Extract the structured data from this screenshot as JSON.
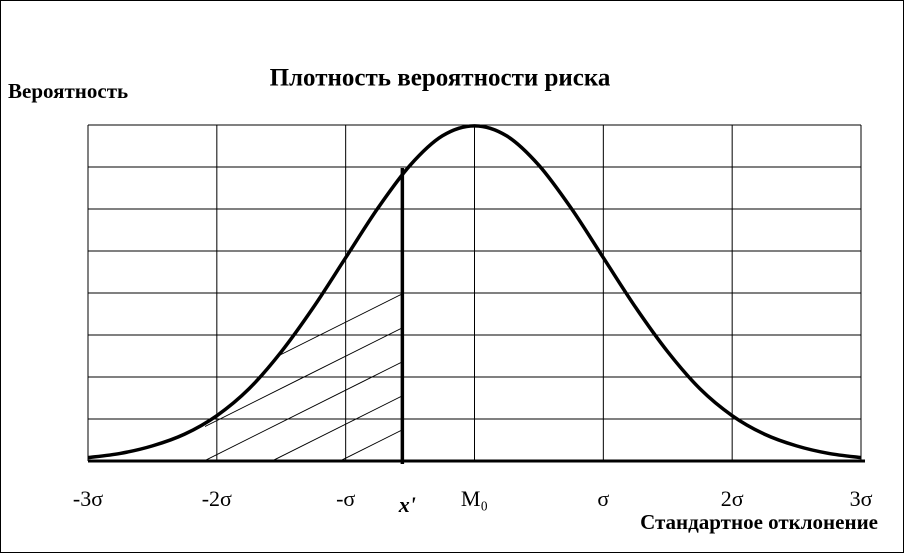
{
  "chart_data": {
    "type": "line",
    "title": "Плотность вероятности риска",
    "y_label": "Вероятность",
    "x_label": "Стандартное отклонение",
    "x": [
      -3,
      -2.75,
      -2.5,
      -2.25,
      -2,
      -1.75,
      -1.5,
      -1.25,
      -1,
      -0.75,
      -0.5,
      -0.25,
      0,
      0.25,
      0.5,
      0.75,
      1,
      1.25,
      1.5,
      1.75,
      2,
      2.25,
      2.5,
      2.75,
      3
    ],
    "values": [
      0.004,
      0.009,
      0.018,
      0.032,
      0.054,
      0.086,
      0.13,
      0.183,
      0.242,
      0.301,
      0.352,
      0.387,
      0.399,
      0.387,
      0.352,
      0.301,
      0.242,
      0.183,
      0.13,
      0.086,
      0.054,
      0.032,
      0.018,
      0.009,
      0.004
    ],
    "color": "#000000",
    "xlim": [
      -3,
      3
    ],
    "xticks": [
      {
        "value": -3,
        "label": "-3σ"
      },
      {
        "value": -2,
        "label": "-2σ"
      },
      {
        "value": -1,
        "label": "-σ"
      },
      {
        "value": 0,
        "label": "M₀"
      },
      {
        "value": 1,
        "label": "σ"
      },
      {
        "value": 2,
        "label": "2σ"
      },
      {
        "value": 3,
        "label": "3σ"
      }
    ],
    "ylim": [
      0,
      0.4
    ],
    "yticks": [
      0,
      0.05,
      0.1,
      0.15,
      0.2,
      0.25,
      0.3,
      0.35,
      0.4
    ],
    "grid": true,
    "marker": {
      "x": -0.56,
      "label": "x'"
    }
  }
}
